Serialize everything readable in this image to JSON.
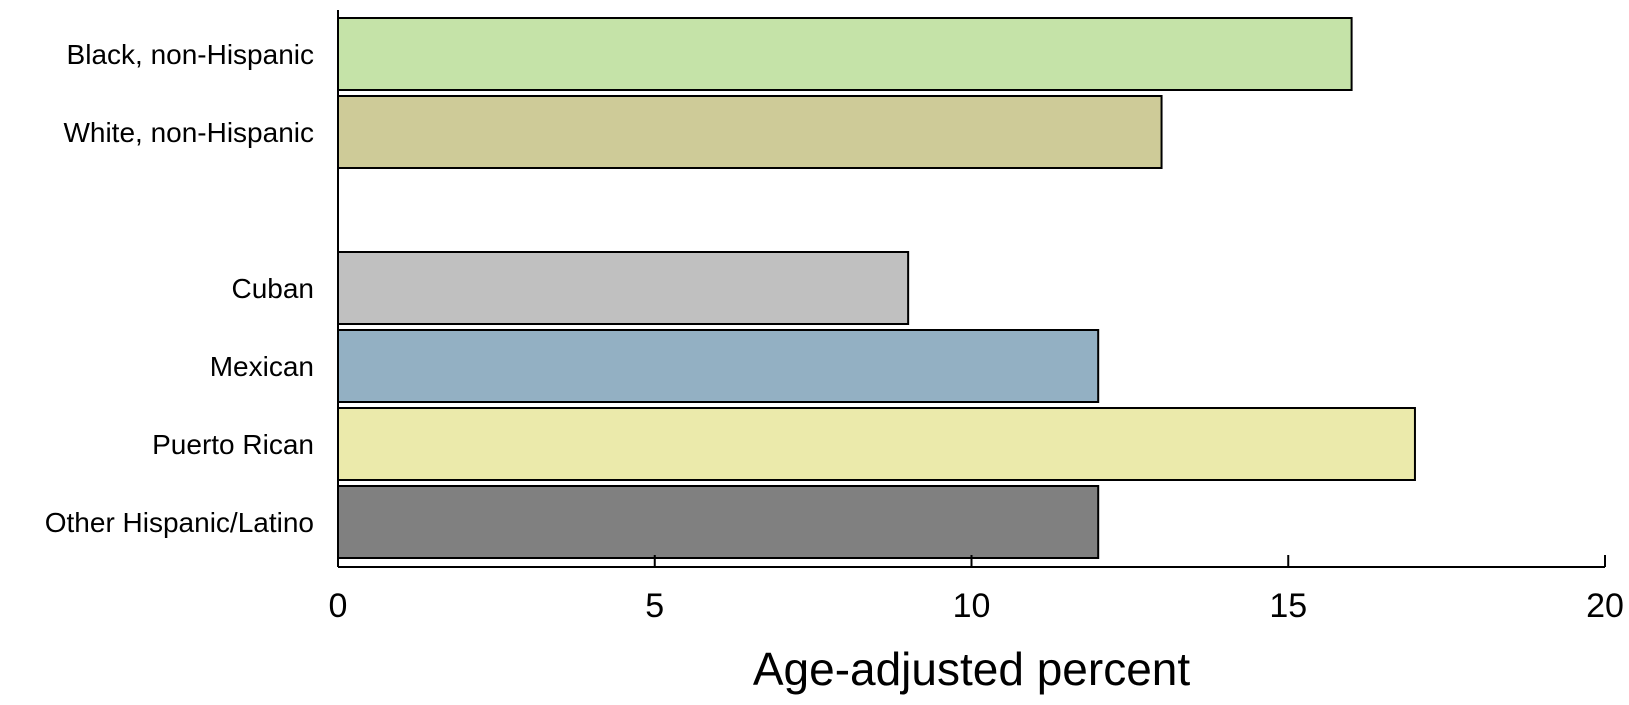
{
  "chart_data": {
    "type": "bar",
    "orientation": "horizontal",
    "title": "",
    "xlabel": "Age-adjusted percent",
    "ylabel": "",
    "xlim": [
      0,
      20
    ],
    "xticks": [
      0,
      5,
      10,
      15,
      20
    ],
    "grid": false,
    "categories": [
      "Black, non-Hispanic",
      "White, non-Hispanic",
      "",
      "Cuban",
      "Mexican",
      "Puerto Rican",
      "Other Hispanic/Latino"
    ],
    "values": [
      16,
      13,
      null,
      9,
      12,
      17,
      12
    ],
    "colors": [
      "#c5e3a8",
      "#cecb98",
      null,
      "#c0c0c0",
      "#93b0c3",
      "#ebeaab",
      "#808080"
    ]
  }
}
